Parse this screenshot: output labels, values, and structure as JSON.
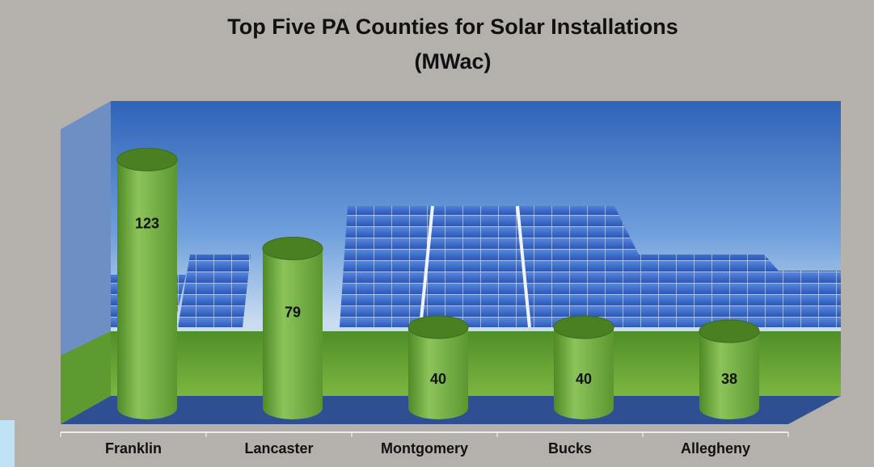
{
  "chart_data": {
    "type": "bar",
    "title": "Top Five PA Counties for Solar Installations",
    "subtitle": "(MWac)",
    "categories": [
      "Franklin",
      "Lancaster",
      "Montgomery",
      "Bucks",
      "Allegheny"
    ],
    "values": [
      123,
      79,
      40,
      40,
      38
    ],
    "color": "#8cc45a",
    "ylim": [
      0,
      130
    ]
  }
}
